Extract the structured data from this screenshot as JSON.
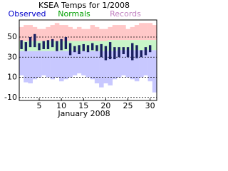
{
  "chart_data": {
    "type": "temperature_range",
    "title": "KSEA Temps for 1/2008",
    "x_label": "January 2008",
    "x": [
      1,
      2,
      3,
      4,
      5,
      6,
      7,
      8,
      9,
      10,
      11,
      12,
      13,
      14,
      15,
      16,
      17,
      18,
      19,
      20,
      21,
      22,
      23,
      24,
      25,
      26,
      27,
      28,
      29,
      30,
      31
    ],
    "xlim": [
      0.5,
      31.5
    ],
    "xticks": [
      5,
      10,
      15,
      20,
      25,
      30
    ],
    "ylim": [
      -13,
      67
    ],
    "yticks": [
      -10,
      10,
      30,
      50
    ],
    "grid": true,
    "series": [
      {
        "name": "Observed",
        "color": "#1a2060",
        "label_color": "#0000cc",
        "high": [
          47,
          45,
          50,
          53,
          44,
          46,
          47,
          48,
          46,
          48,
          50,
          44,
          41,
          42,
          43,
          42,
          44,
          42,
          43,
          41,
          45,
          40,
          40,
          40,
          40,
          44,
          42,
          37,
          40,
          42,
          null
        ],
        "low": [
          38,
          36,
          40,
          40,
          37,
          38,
          38,
          40,
          36,
          37,
          38,
          32,
          35,
          33,
          36,
          35,
          37,
          36,
          30,
          27,
          28,
          28,
          30,
          33,
          30,
          27,
          29,
          30,
          32,
          35,
          null
        ]
      },
      {
        "name": "Normals",
        "color": "#c8f5c8",
        "label_color": "#00a000",
        "high": [
          46,
          46,
          46,
          46,
          46,
          46,
          46,
          46,
          46,
          46,
          46,
          46,
          46,
          46,
          46,
          46,
          46,
          46,
          46,
          46,
          47,
          47,
          47,
          47,
          47,
          47,
          47,
          47,
          47,
          47,
          47
        ],
        "low": [
          36,
          36,
          36,
          36,
          36,
          36,
          36,
          36,
          36,
          36,
          36,
          36,
          36,
          36,
          36,
          36,
          36,
          36,
          36,
          36,
          36,
          36,
          37,
          37,
          37,
          37,
          37,
          37,
          37,
          37,
          37
        ]
      },
      {
        "name": "Records",
        "color": "#ffc8c8",
        "low_color": "#c8c8ff",
        "label_color": "#c080c0",
        "high": [
          60,
          62,
          62,
          60,
          58,
          58,
          60,
          62,
          64,
          62,
          62,
          60,
          58,
          60,
          58,
          58,
          62,
          60,
          58,
          58,
          60,
          62,
          62,
          62,
          58,
          60,
          62,
          64,
          64,
          64,
          62
        ],
        "low": [
          12,
          5,
          4,
          8,
          10,
          12,
          10,
          8,
          10,
          6,
          8,
          10,
          12,
          14,
          12,
          10,
          8,
          4,
          0,
          4,
          2,
          8,
          10,
          12,
          10,
          8,
          6,
          10,
          12,
          6,
          -5
        ]
      }
    ]
  }
}
